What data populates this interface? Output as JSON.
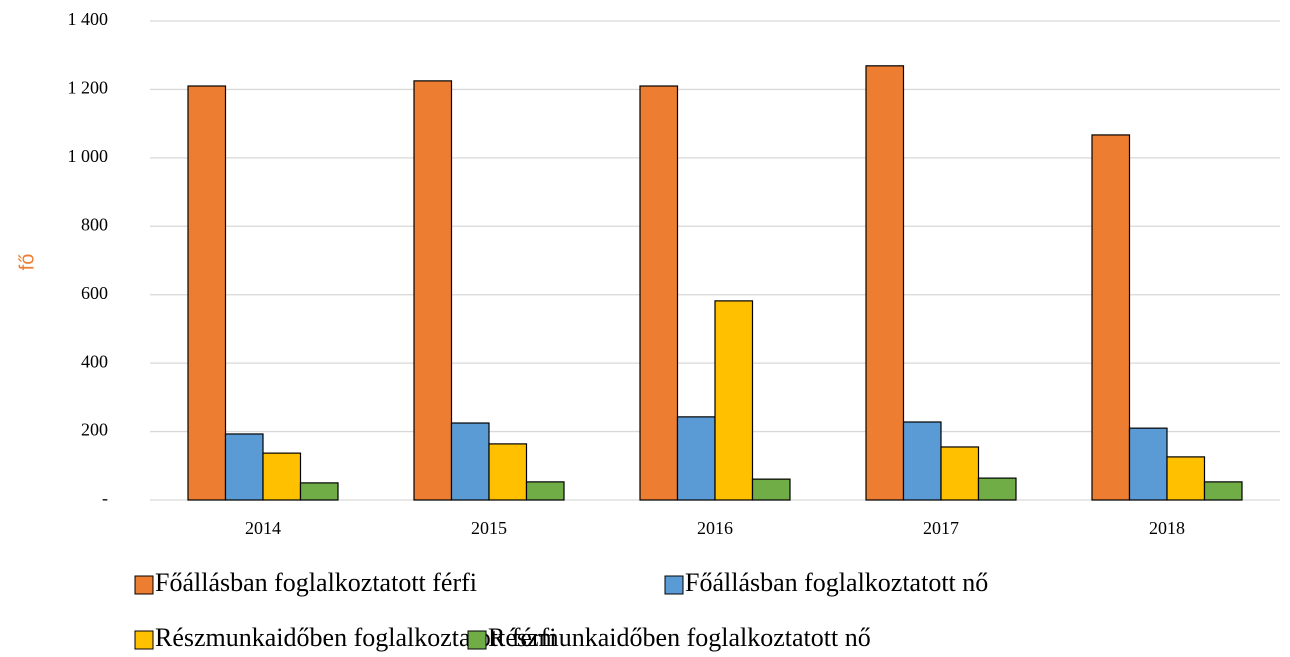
{
  "chart_data": {
    "type": "bar",
    "y_label": "fő",
    "categories": [
      "2014",
      "2015",
      "2016",
      "2017",
      "2018"
    ],
    "series": [
      {
        "name": "Főállásban foglalkoztatott férfi",
        "color": "#ed7d31",
        "values": [
          1210,
          1225,
          1210,
          1269,
          1067
        ]
      },
      {
        "name": "Főállásban foglalkoztatott nő",
        "color": "#5b9bd5",
        "values": [
          193,
          225,
          243,
          228,
          210
        ]
      },
      {
        "name": "Részmunkaidőben foglalkoztatott férfi",
        "color": "#ffc000",
        "values": [
          137,
          164,
          582,
          155,
          126
        ]
      },
      {
        "name": "Részmunkaidőben foglalkoztatott nő",
        "color": "#70ad47",
        "values": [
          50,
          53,
          61,
          64,
          53
        ]
      }
    ],
    "ylim": [
      0,
      1400
    ],
    "yticks": [
      {
        "value": 0,
        "label": "-"
      },
      200,
      400,
      600,
      800,
      {
        "value": 1000,
        "label": "1 000"
      },
      {
        "value": 1200,
        "label": "1 200"
      },
      {
        "value": 1400,
        "label": "1 400"
      }
    ],
    "grid": true,
    "legend": "bottom"
  }
}
